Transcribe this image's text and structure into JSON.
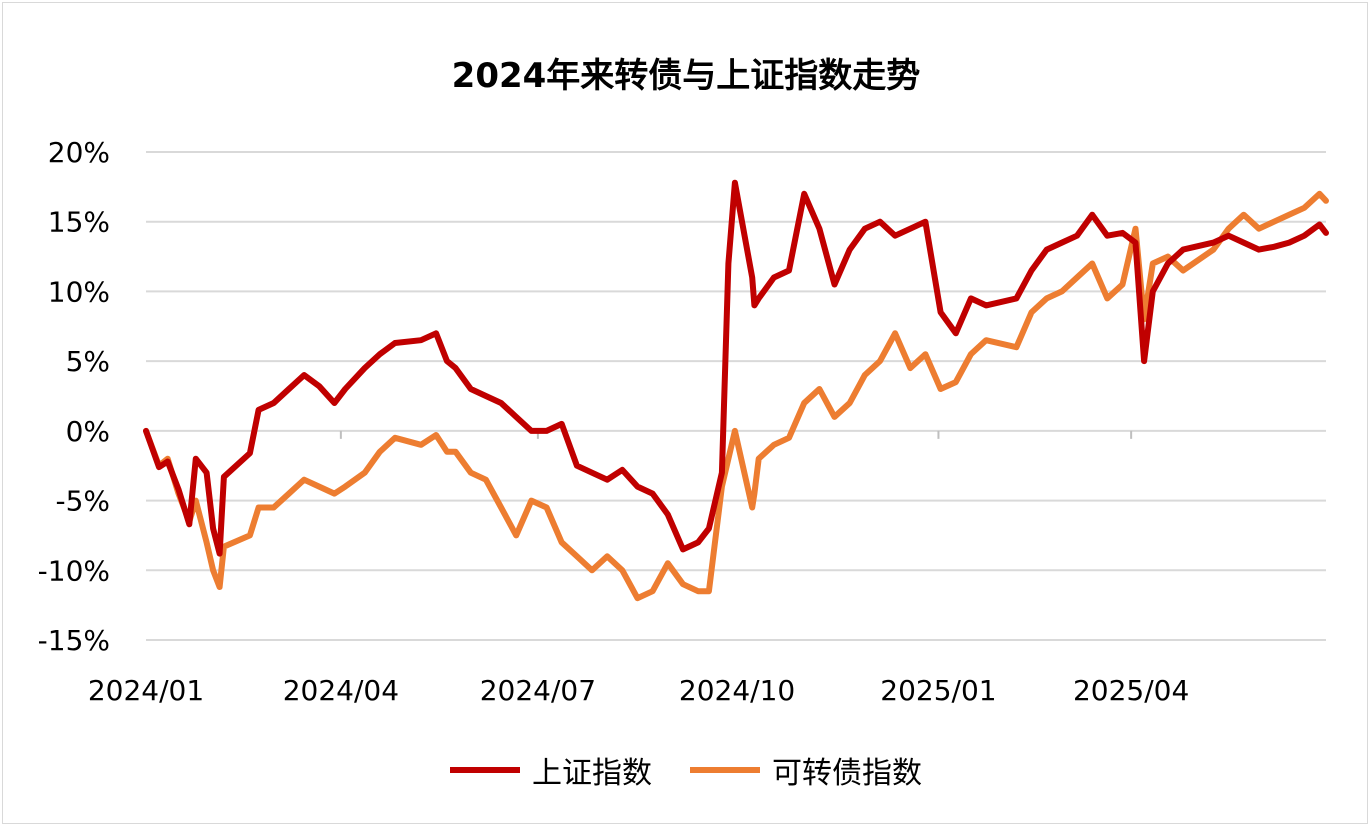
{
  "chart_data": {
    "type": "line",
    "title": "2024年来转债与上证指数走势",
    "xlabel": "",
    "ylabel": "",
    "ylim": [
      -15,
      20
    ],
    "yticks": [
      "20%",
      "15%",
      "10%",
      "5%",
      "0%",
      "-5%",
      "-10%",
      "-15%"
    ],
    "ytick_values": [
      20,
      15,
      10,
      5,
      0,
      -5,
      -10,
      -15
    ],
    "xticks": [
      "2024/01",
      "2024/04",
      "2024/07",
      "2024/10",
      "2025/01",
      "2025/04"
    ],
    "xtick_dates": [
      "2024-01-02",
      "2024-04-01",
      "2024-07-01",
      "2024-10-01",
      "2025-01-02",
      "2025-04-01"
    ],
    "xlim": [
      "2024-01-02",
      "2025-06-30"
    ],
    "grid": "horizontal",
    "legend_position": "bottom",
    "series": [
      {
        "name": "上证指数",
        "color": "#c00000",
        "x": [
          "2024-01-02",
          "2024-01-08",
          "2024-01-12",
          "2024-01-17",
          "2024-01-22",
          "2024-01-25",
          "2024-01-30",
          "2024-02-02",
          "2024-02-05",
          "2024-02-07",
          "2024-02-19",
          "2024-02-23",
          "2024-03-01",
          "2024-03-08",
          "2024-03-15",
          "2024-03-22",
          "2024-03-29",
          "2024-04-03",
          "2024-04-12",
          "2024-04-19",
          "2024-04-26",
          "2024-05-08",
          "2024-05-15",
          "2024-05-20",
          "2024-05-24",
          "2024-05-31",
          "2024-06-07",
          "2024-06-14",
          "2024-06-21",
          "2024-06-28",
          "2024-07-05",
          "2024-07-12",
          "2024-07-19",
          "2024-07-26",
          "2024-08-02",
          "2024-08-09",
          "2024-08-16",
          "2024-08-23",
          "2024-08-30",
          "2024-09-06",
          "2024-09-13",
          "2024-09-18",
          "2024-09-24",
          "2024-09-27",
          "2024-09-30",
          "2024-10-08",
          "2024-10-09",
          "2024-10-11",
          "2024-10-18",
          "2024-10-25",
          "2024-11-01",
          "2024-11-08",
          "2024-11-15",
          "2024-11-22",
          "2024-11-29",
          "2024-12-06",
          "2024-12-13",
          "2024-12-20",
          "2024-12-27",
          "2025-01-03",
          "2025-01-10",
          "2025-01-17",
          "2025-01-24",
          "2025-02-07",
          "2025-02-14",
          "2025-02-21",
          "2025-02-28",
          "2025-03-07",
          "2025-03-14",
          "2025-03-21",
          "2025-03-28",
          "2025-04-03",
          "2025-04-07",
          "2025-04-11",
          "2025-04-18",
          "2025-04-25",
          "2025-05-09",
          "2025-05-16",
          "2025-05-23",
          "2025-05-30",
          "2025-06-06",
          "2025-06-13",
          "2025-06-20",
          "2025-06-27",
          "2025-06-30"
        ],
        "values": [
          0.0,
          -2.6,
          -2.2,
          -4.2,
          -6.7,
          -2.0,
          -3.0,
          -7.0,
          -8.8,
          -3.3,
          -1.6,
          1.5,
          2.0,
          3.0,
          4.0,
          3.2,
          2.0,
          3.0,
          4.5,
          5.5,
          6.3,
          6.5,
          7.0,
          5.0,
          4.5,
          3.0,
          2.5,
          2.0,
          1.0,
          0.0,
          0.0,
          0.5,
          -2.5,
          -3.0,
          -3.5,
          -2.8,
          -4.0,
          -4.5,
          -6.0,
          -8.5,
          -8.0,
          -7.0,
          -3.0,
          12.0,
          17.8,
          11.0,
          9.0,
          9.5,
          11.0,
          11.5,
          17.0,
          14.5,
          10.5,
          13.0,
          14.5,
          15.0,
          14.0,
          14.5,
          15.0,
          8.5,
          7.0,
          9.5,
          9.0,
          9.5,
          11.5,
          13.0,
          13.5,
          14.0,
          15.5,
          14.0,
          14.2,
          13.5,
          5.0,
          10.0,
          12.0,
          13.0,
          13.5,
          14.0,
          13.5,
          13.0,
          13.2,
          13.5,
          14.0,
          14.8,
          14.2
        ]
      },
      {
        "name": "可转债指数",
        "color": "#ed7d31",
        "x": [
          "2024-01-02",
          "2024-01-08",
          "2024-01-12",
          "2024-01-17",
          "2024-01-22",
          "2024-01-25",
          "2024-01-30",
          "2024-02-02",
          "2024-02-05",
          "2024-02-07",
          "2024-02-19",
          "2024-02-23",
          "2024-03-01",
          "2024-03-08",
          "2024-03-15",
          "2024-03-22",
          "2024-03-29",
          "2024-04-03",
          "2024-04-12",
          "2024-04-19",
          "2024-04-26",
          "2024-05-08",
          "2024-05-15",
          "2024-05-20",
          "2024-05-24",
          "2024-05-31",
          "2024-06-07",
          "2024-06-14",
          "2024-06-21",
          "2024-06-28",
          "2024-07-05",
          "2024-07-12",
          "2024-07-19",
          "2024-07-26",
          "2024-08-02",
          "2024-08-09",
          "2024-08-16",
          "2024-08-23",
          "2024-08-30",
          "2024-09-06",
          "2024-09-13",
          "2024-09-18",
          "2024-09-24",
          "2024-09-27",
          "2024-09-30",
          "2024-10-08",
          "2024-10-09",
          "2024-10-11",
          "2024-10-18",
          "2024-10-25",
          "2024-11-01",
          "2024-11-08",
          "2024-11-15",
          "2024-11-22",
          "2024-11-29",
          "2024-12-06",
          "2024-12-13",
          "2024-12-20",
          "2024-12-27",
          "2025-01-03",
          "2025-01-10",
          "2025-01-17",
          "2025-01-24",
          "2025-02-07",
          "2025-02-14",
          "2025-02-21",
          "2025-02-28",
          "2025-03-07",
          "2025-03-14",
          "2025-03-21",
          "2025-03-28",
          "2025-04-03",
          "2025-04-07",
          "2025-04-11",
          "2025-04-18",
          "2025-04-25",
          "2025-05-09",
          "2025-05-16",
          "2025-05-23",
          "2025-05-30",
          "2025-06-06",
          "2025-06-13",
          "2025-06-20",
          "2025-06-27",
          "2025-06-30"
        ],
        "values": [
          0.0,
          -2.5,
          -2.0,
          -4.5,
          -6.5,
          -5.0,
          -8.0,
          -10.0,
          -11.2,
          -8.3,
          -7.5,
          -5.5,
          -5.5,
          -4.5,
          -3.5,
          -4.0,
          -4.5,
          -4.0,
          -3.0,
          -1.5,
          -0.5,
          -1.0,
          -0.3,
          -1.5,
          -1.5,
          -3.0,
          -3.5,
          -5.5,
          -7.5,
          -5.0,
          -5.5,
          -8.0,
          -9.0,
          -10.0,
          -9.0,
          -10.0,
          -12.0,
          -11.5,
          -9.5,
          -11.0,
          -11.5,
          -11.5,
          -4.0,
          -2.0,
          0.0,
          -5.5,
          -4.5,
          -2.0,
          -1.0,
          -0.5,
          2.0,
          3.0,
          1.0,
          2.0,
          4.0,
          5.0,
          7.0,
          4.5,
          5.5,
          3.0,
          3.5,
          5.5,
          6.5,
          6.0,
          8.5,
          9.5,
          10.0,
          11.0,
          12.0,
          9.5,
          10.5,
          14.5,
          8.0,
          12.0,
          12.5,
          11.5,
          13.0,
          14.5,
          15.5,
          14.5,
          15.0,
          15.5,
          16.0,
          17.0,
          16.5
        ]
      }
    ]
  }
}
